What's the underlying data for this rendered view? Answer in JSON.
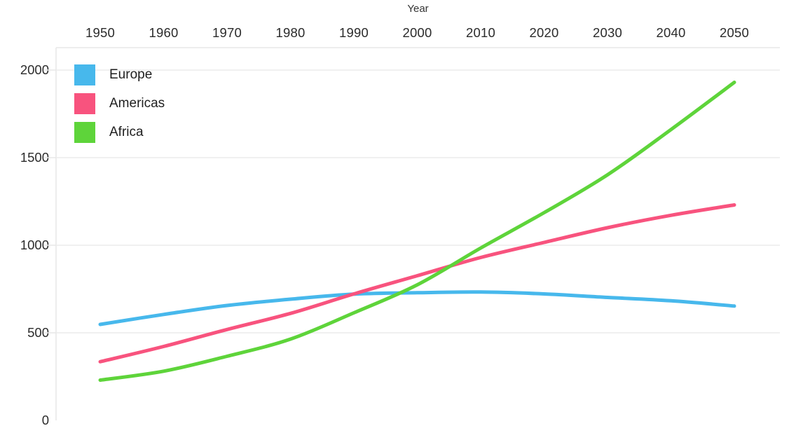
{
  "chart_data": {
    "type": "line",
    "title": "",
    "xlabel": "Year",
    "ylabel": "",
    "categories": [
      1950,
      1960,
      1970,
      1980,
      1990,
      2000,
      2010,
      2020,
      2030,
      2040,
      2050
    ],
    "series": [
      {
        "name": "Europe",
        "color": "#47b8ec",
        "values": [
          548,
          605,
          656,
          692,
          721,
          729,
          733,
          722,
          702,
          683,
          653
        ]
      },
      {
        "name": "Americas",
        "color": "#f8537e",
        "values": [
          335,
          422,
          519,
          611,
          722,
          826,
          930,
          1016,
          1100,
          1171,
          1230
        ]
      },
      {
        "name": "Africa",
        "color": "#5ed43a",
        "values": [
          230,
          281,
          366,
          464,
          614,
          774,
          984,
          1186,
          1402,
          1660,
          1930
        ]
      }
    ],
    "ylim": [
      0,
      2000
    ],
    "yticks": [
      0,
      500,
      1000,
      1500,
      2000
    ],
    "grid": true,
    "grid_color": "#ebebeb",
    "axis_line_color": "#e7e7e7",
    "legend_position": "top-left",
    "x_axis_position": "top",
    "line_width": 5
  }
}
